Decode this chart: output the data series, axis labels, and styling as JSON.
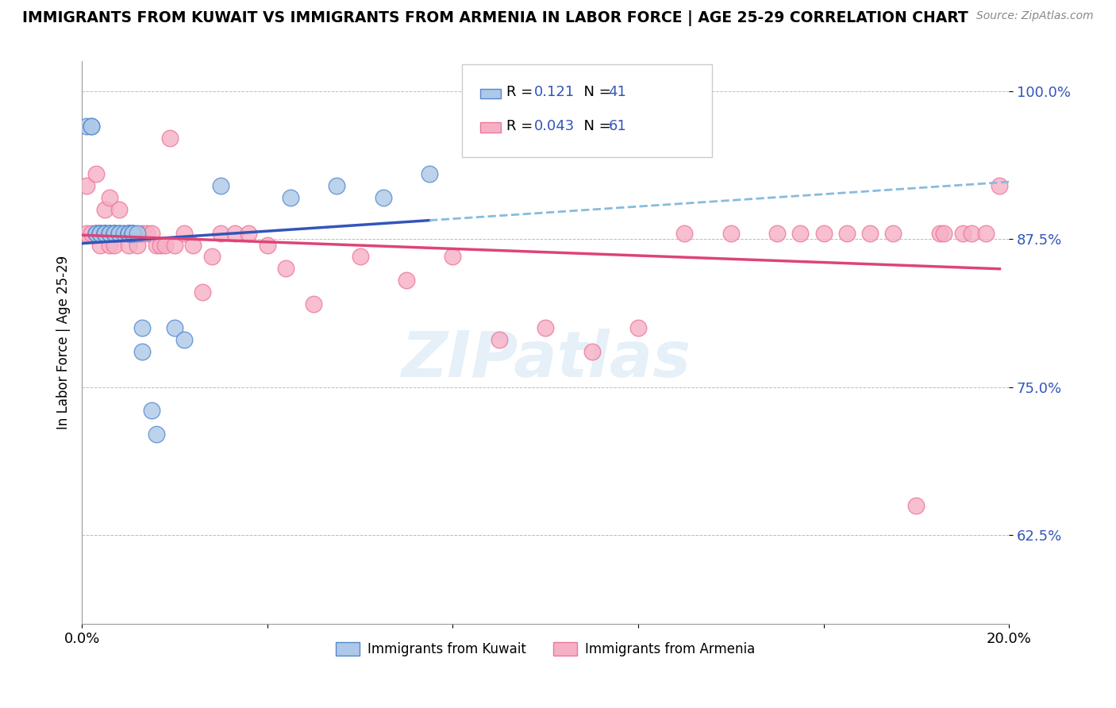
{
  "title": "IMMIGRANTS FROM KUWAIT VS IMMIGRANTS FROM ARMENIA IN LABOR FORCE | AGE 25-29 CORRELATION CHART",
  "source": "Source: ZipAtlas.com",
  "ylabel": "In Labor Force | Age 25-29",
  "xlim": [
    0.0,
    0.2
  ],
  "ylim": [
    0.55,
    1.025
  ],
  "yticks": [
    0.625,
    0.75,
    0.875,
    1.0
  ],
  "ytick_labels": [
    "62.5%",
    "75.0%",
    "87.5%",
    "100.0%"
  ],
  "xticks": [
    0.0,
    0.04,
    0.08,
    0.12,
    0.16,
    0.2
  ],
  "xtick_labels": [
    "0.0%",
    "",
    "",
    "",
    "",
    "20.0%"
  ],
  "kuwait_R": 0.121,
  "kuwait_N": 41,
  "armenia_R": 0.043,
  "armenia_N": 61,
  "kuwait_color": "#adc8e8",
  "armenia_color": "#f5b0c5",
  "kuwait_line_color": "#3355bb",
  "armenia_line_color": "#dd4477",
  "kuwait_edge_color": "#5588cc",
  "armenia_edge_color": "#ee7799",
  "watermark_text": "ZIPatlas",
  "kuwait_x": [
    0.001,
    0.002,
    0.002,
    0.003,
    0.003,
    0.004,
    0.004,
    0.004,
    0.005,
    0.005,
    0.005,
    0.005,
    0.006,
    0.006,
    0.006,
    0.007,
    0.007,
    0.007,
    0.007,
    0.008,
    0.008,
    0.009,
    0.01,
    0.01,
    0.01,
    0.01,
    0.011,
    0.011,
    0.011,
    0.012,
    0.013,
    0.013,
    0.015,
    0.016,
    0.02,
    0.022,
    0.03,
    0.045,
    0.055,
    0.065,
    0.075
  ],
  "kuwait_y": [
    0.97,
    0.97,
    0.97,
    0.88,
    0.88,
    0.88,
    0.88,
    0.88,
    0.88,
    0.88,
    0.88,
    0.88,
    0.88,
    0.88,
    0.88,
    0.88,
    0.88,
    0.88,
    0.88,
    0.88,
    0.88,
    0.88,
    0.88,
    0.88,
    0.88,
    0.88,
    0.88,
    0.88,
    0.88,
    0.88,
    0.8,
    0.78,
    0.73,
    0.71,
    0.8,
    0.79,
    0.92,
    0.91,
    0.92,
    0.91,
    0.93
  ],
  "armenia_x": [
    0.001,
    0.001,
    0.002,
    0.003,
    0.003,
    0.004,
    0.004,
    0.005,
    0.005,
    0.005,
    0.006,
    0.006,
    0.007,
    0.007,
    0.008,
    0.008,
    0.009,
    0.01,
    0.01,
    0.011,
    0.012,
    0.013,
    0.014,
    0.015,
    0.016,
    0.017,
    0.018,
    0.019,
    0.02,
    0.022,
    0.024,
    0.026,
    0.028,
    0.03,
    0.033,
    0.036,
    0.04,
    0.044,
    0.05,
    0.06,
    0.07,
    0.08,
    0.09,
    0.1,
    0.11,
    0.12,
    0.13,
    0.14,
    0.15,
    0.155,
    0.16,
    0.165,
    0.17,
    0.175,
    0.18,
    0.185,
    0.186,
    0.19,
    0.192,
    0.195,
    0.198
  ],
  "armenia_y": [
    0.88,
    0.92,
    0.88,
    0.88,
    0.93,
    0.88,
    0.87,
    0.88,
    0.9,
    0.88,
    0.87,
    0.91,
    0.88,
    0.87,
    0.9,
    0.88,
    0.88,
    0.88,
    0.87,
    0.88,
    0.87,
    0.88,
    0.88,
    0.88,
    0.87,
    0.87,
    0.87,
    0.96,
    0.87,
    0.88,
    0.87,
    0.83,
    0.86,
    0.88,
    0.88,
    0.88,
    0.87,
    0.85,
    0.82,
    0.86,
    0.84,
    0.86,
    0.79,
    0.8,
    0.78,
    0.8,
    0.88,
    0.88,
    0.88,
    0.88,
    0.88,
    0.88,
    0.88,
    0.88,
    0.65,
    0.88,
    0.88,
    0.88,
    0.88,
    0.88,
    0.92
  ]
}
